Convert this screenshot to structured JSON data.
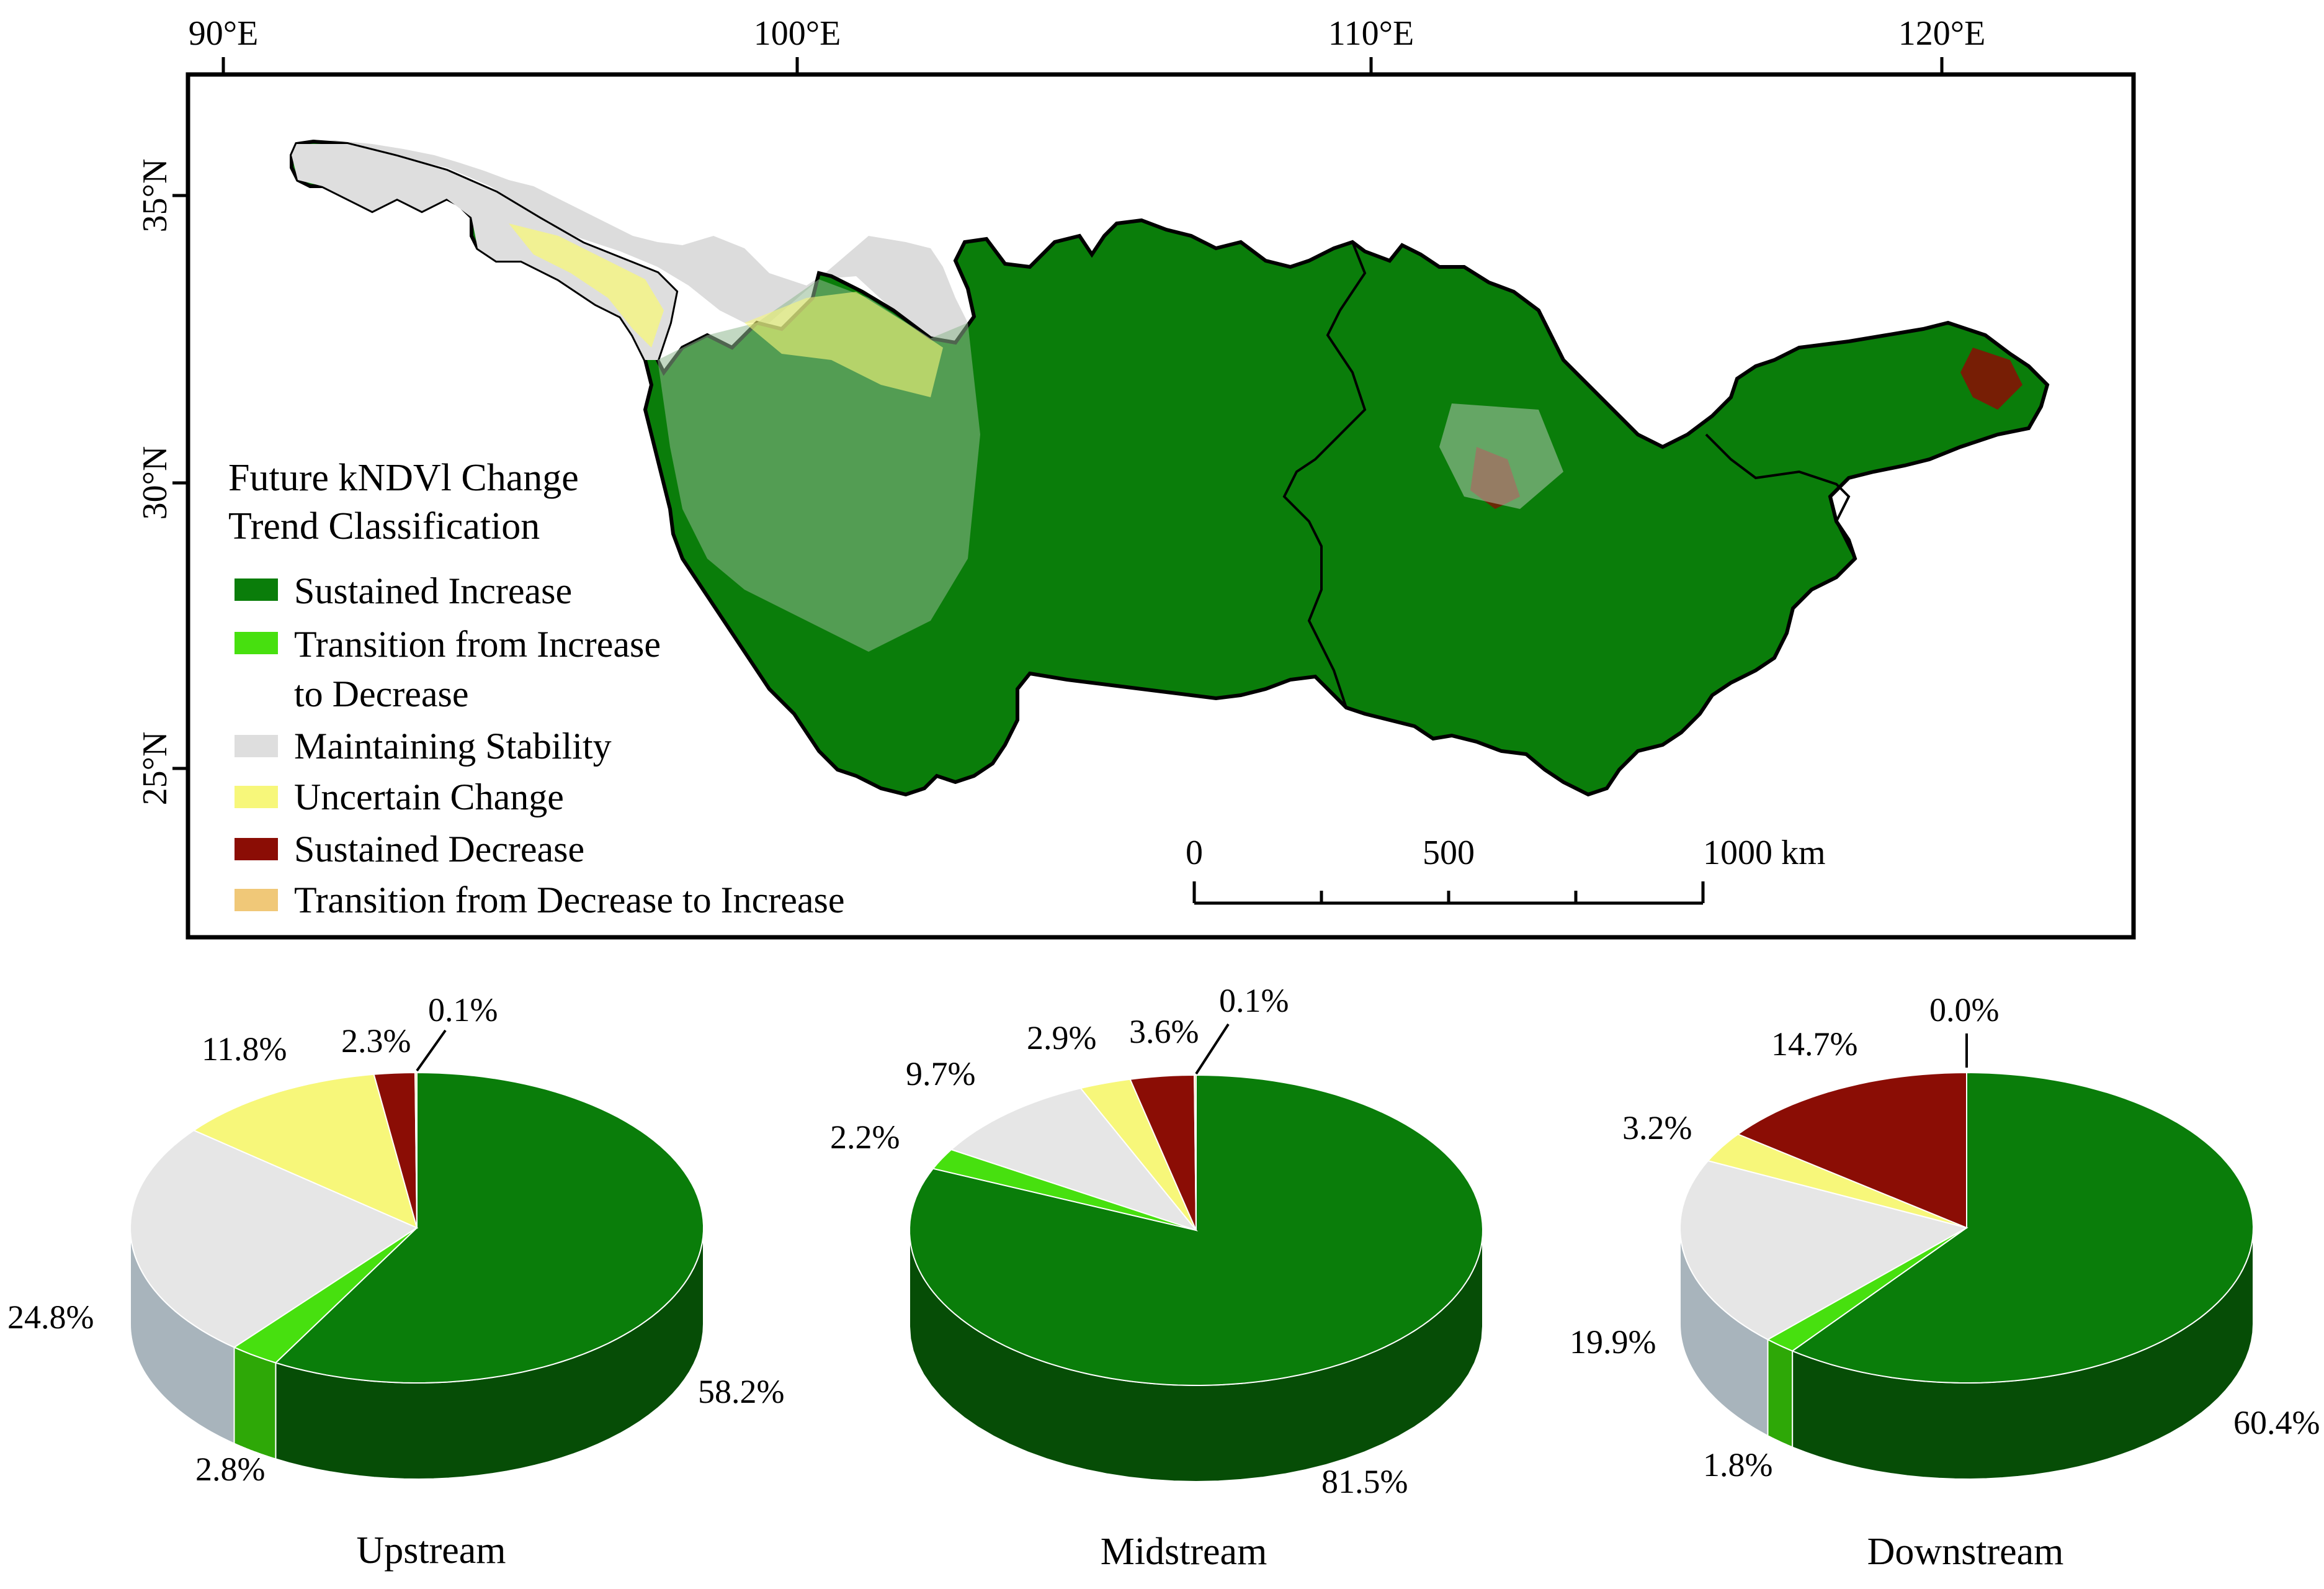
{
  "map": {
    "longitude_labels": [
      "90°E",
      "100°E",
      "110°E",
      "120°E"
    ],
    "latitude_labels": [
      "35°N",
      "30°N",
      "25°N"
    ],
    "legend": {
      "title_line1": "Future kNDVl Change",
      "title_line2": "Trend Classification",
      "items": [
        {
          "label": "Sustained Increase",
          "color": "#0a7d0a"
        },
        {
          "label": "Transition from Increase",
          "label2": "to Decrease",
          "color": "#47e00f"
        },
        {
          "label": "Maintaining Stability",
          "color": "#dedede"
        },
        {
          "label": "Uncertain Change",
          "color": "#f7f77a"
        },
        {
          "label": "Sustained Decrease",
          "color": "#8b0d05"
        },
        {
          "label": "Transition from Decrease to Increase",
          "color": "#f0c878"
        }
      ]
    },
    "scale_bar": {
      "labels": [
        "0",
        "500",
        "1000 km"
      ]
    }
  },
  "chart_data": [
    {
      "type": "pie",
      "title": "Upstream",
      "categories": [
        "Sustained Increase",
        "Transition from Increase to Decrease",
        "Maintaining Stability",
        "Uncertain Change",
        "Sustained Decrease",
        "Transition from Decrease to Increase"
      ],
      "values": [
        58.2,
        2.8,
        24.8,
        11.8,
        2.3,
        0.1
      ],
      "value_labels": [
        "58.2%",
        "2.8%",
        "24.8%",
        "11.8%",
        "2.3%",
        "0.1%"
      ]
    },
    {
      "type": "pie",
      "title": "Midstream",
      "categories": [
        "Sustained Increase",
        "Transition from Increase to Decrease",
        "Maintaining Stability",
        "Uncertain Change",
        "Sustained Decrease",
        "Transition from Decrease to Increase"
      ],
      "values": [
        81.5,
        2.2,
        9.7,
        2.9,
        3.6,
        0.1
      ],
      "value_labels": [
        "81.5%",
        "2.2%",
        "9.7%",
        "2.9%",
        "3.6%",
        "0.1%"
      ]
    },
    {
      "type": "pie",
      "title": "Downstream",
      "categories": [
        "Sustained Increase",
        "Transition from Increase to Decrease",
        "Maintaining Stability",
        "Uncertain Change",
        "Sustained Decrease",
        "Transition from Decrease to Increase"
      ],
      "values": [
        60.4,
        1.8,
        19.9,
        3.2,
        14.7,
        0.0
      ],
      "value_labels": [
        "60.4%",
        "1.8%",
        "19.9%",
        "3.2%",
        "14.7%",
        "0.0%"
      ]
    }
  ],
  "colors": {
    "increase": "#0a7d0a",
    "increase_side": "#064d06",
    "inc_to_dec": "#47e00f",
    "inc_to_dec_side": "#2ea807",
    "stability": "#e6e6e6",
    "stability_side": "#a8b4bc",
    "uncertain": "#f7f77a",
    "decrease": "#8b0d05",
    "dec_to_inc": "#f0c878"
  }
}
